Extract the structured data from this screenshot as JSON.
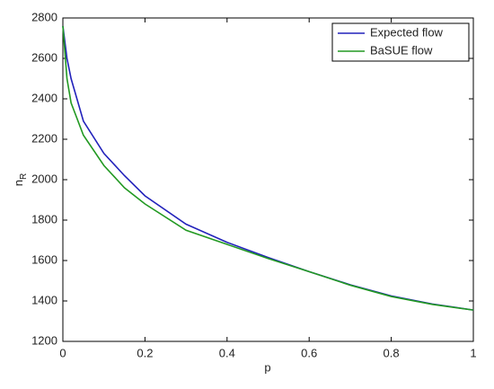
{
  "chart_data": {
    "type": "line",
    "xlabel": "p",
    "ylabel": "n",
    "ylabel_subscript": "R",
    "x": [
      0,
      0.01,
      0.02,
      0.05,
      0.1,
      0.15,
      0.2,
      0.3,
      0.4,
      0.5,
      0.6,
      0.7,
      0.8,
      0.9,
      1.0
    ],
    "series": [
      {
        "name": "Expected flow",
        "color": "#2222bb",
        "values": [
          2760,
          2600,
          2500,
          2290,
          2130,
          2020,
          1920,
          1780,
          1690,
          1615,
          1545,
          1480,
          1425,
          1385,
          1355
        ]
      },
      {
        "name": "BaSUE flow",
        "color": "#229922",
        "values": [
          2760,
          2500,
          2380,
          2220,
          2070,
          1960,
          1880,
          1750,
          1680,
          1610,
          1545,
          1478,
          1422,
          1383,
          1355
        ]
      }
    ],
    "xlim": [
      0,
      1
    ],
    "xticks": [
      0,
      0.2,
      0.4,
      0.6,
      0.8,
      1
    ],
    "ylim": [
      1200,
      2800
    ],
    "yticks": [
      1200,
      1400,
      1600,
      1800,
      2000,
      2200,
      2400,
      2600,
      2800
    ],
    "legend": "upper-right"
  }
}
